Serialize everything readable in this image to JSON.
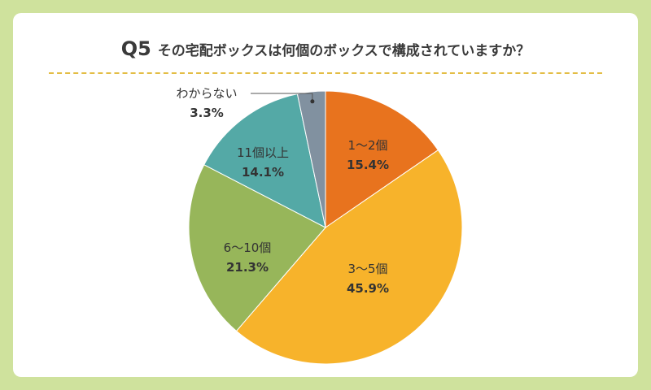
{
  "title": {
    "q_label": "Q5",
    "question": "その宅配ボックスは何個のボックスで構成されていますか？"
  },
  "chart_data": {
    "type": "pie",
    "start_angle_deg": 0,
    "direction": "clockwise",
    "slices": [
      {
        "label": "1〜2個",
        "value": 15.4,
        "display": "15.4%",
        "color": "#e8731e"
      },
      {
        "label": "3〜5個",
        "value": 45.9,
        "display": "45.9%",
        "color": "#f7b32b"
      },
      {
        "label": "6〜10個",
        "value": 21.3,
        "display": "21.3%",
        "color": "#97b65a"
      },
      {
        "label": "11個以上",
        "value": 14.1,
        "display": "14.1%",
        "color": "#54a9a6"
      },
      {
        "label": "わからない",
        "value": 3.3,
        "display": "3.3%",
        "color": "#8191a0"
      }
    ],
    "colors": {
      "background": "#cfe29d",
      "divider": "#e3bd45",
      "text": "#333333"
    }
  }
}
